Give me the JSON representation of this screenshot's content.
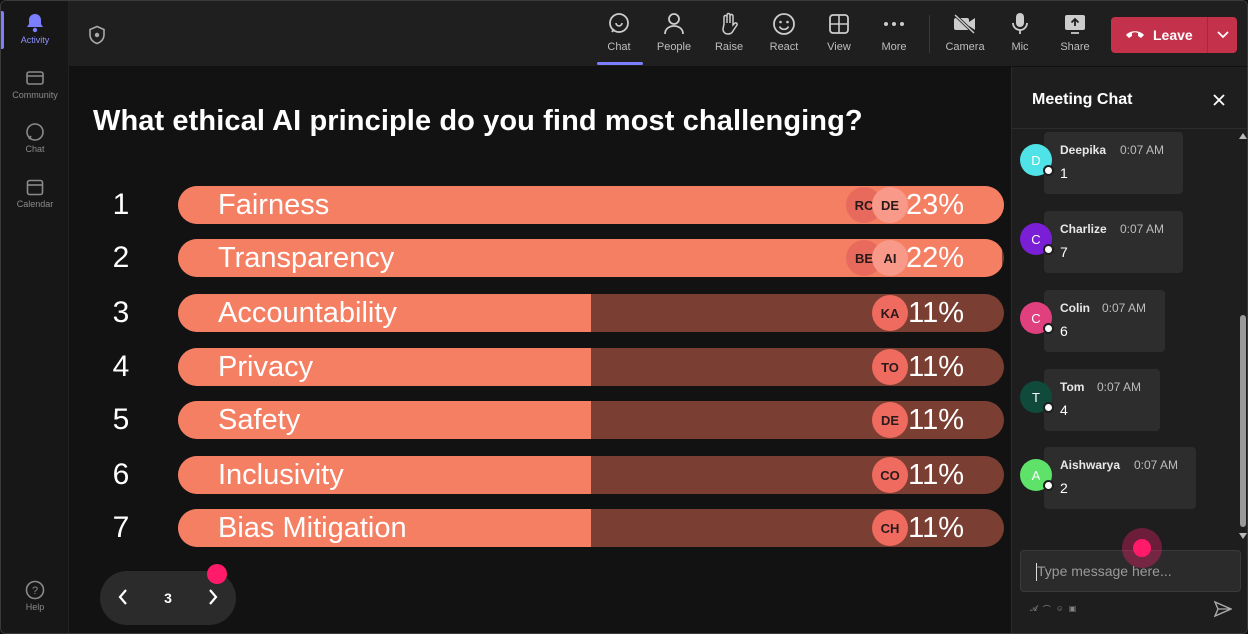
{
  "rail": {
    "items": [
      {
        "label": "Activity",
        "icon": "bell-icon"
      },
      {
        "label": "Community",
        "icon": "community-icon"
      },
      {
        "label": "Chat",
        "icon": "chat-icon"
      },
      {
        "label": "Calendar",
        "icon": "calendar-icon"
      }
    ],
    "help": {
      "label": "Help",
      "icon": "help-icon"
    }
  },
  "toolbar": {
    "buttons": [
      {
        "label": "Chat",
        "icon": "chat-icon"
      },
      {
        "label": "People",
        "icon": "people-icon"
      },
      {
        "label": "Raise",
        "icon": "raise-hand-icon"
      },
      {
        "label": "React",
        "icon": "smiley-icon"
      },
      {
        "label": "View",
        "icon": "grid-icon"
      },
      {
        "label": "More",
        "icon": "more-icon"
      },
      {
        "label": "Camera",
        "icon": "camera-off-icon"
      },
      {
        "label": "Mic",
        "icon": "mic-icon"
      },
      {
        "label": "Share",
        "icon": "share-icon"
      }
    ],
    "leave_label": "Leave"
  },
  "poll": {
    "question": "What ethical AI principle do you find most challenging?",
    "options": [
      {
        "num": "1",
        "label": "Fairness",
        "pct_label": "23%",
        "pct": 1.0,
        "voters": [
          "RC",
          "DE"
        ]
      },
      {
        "num": "2",
        "label": "Transparency",
        "pct_label": "22%",
        "pct": 0.997,
        "voters": [
          "BE",
          "AI"
        ]
      },
      {
        "num": "3",
        "label": "Accountability",
        "pct_label": "11%",
        "pct": 0.5,
        "voters": [
          "KA"
        ]
      },
      {
        "num": "4",
        "label": "Privacy",
        "pct_label": "11%",
        "pct": 0.5,
        "voters": [
          "TO"
        ]
      },
      {
        "num": "5",
        "label": "Safety",
        "pct_label": "11%",
        "pct": 0.5,
        "voters": [
          "DE"
        ]
      },
      {
        "num": "6",
        "label": "Inclusivity",
        "pct_label": "11%",
        "pct": 0.5,
        "voters": [
          "CO"
        ]
      },
      {
        "num": "7",
        "label": "Bias Mitigation",
        "pct_label": "11%",
        "pct": 0.5,
        "voters": [
          "CH"
        ]
      }
    ],
    "page": "3"
  },
  "chat": {
    "title": "Meeting Chat",
    "messages": [
      {
        "initial": "D",
        "name": "Deepika",
        "time": "0:07 AM",
        "body": "1",
        "color": "#4fe3e8"
      },
      {
        "initial": "C",
        "name": "Charlize",
        "time": "0:07 AM",
        "body": "7",
        "color": "#7b1fd6"
      },
      {
        "initial": "C",
        "name": "Colin",
        "time": "0:07 AM",
        "body": "6",
        "color": "#e0407e"
      },
      {
        "initial": "T",
        "name": "Tom",
        "time": "0:07 AM",
        "body": "4",
        "color": "#0f4a3a"
      },
      {
        "initial": "A",
        "name": "Aishwarya",
        "time": "0:07 AM",
        "body": "2",
        "color": "#5fe26a"
      }
    ],
    "input_placeholder": "Type message here..."
  },
  "colors": {
    "bar_fill": "#f47f63",
    "bar_track": "#7a3f32",
    "leave": "#c4314b",
    "accent": "#7b7fff",
    "cursor": "#ff1a6a"
  }
}
